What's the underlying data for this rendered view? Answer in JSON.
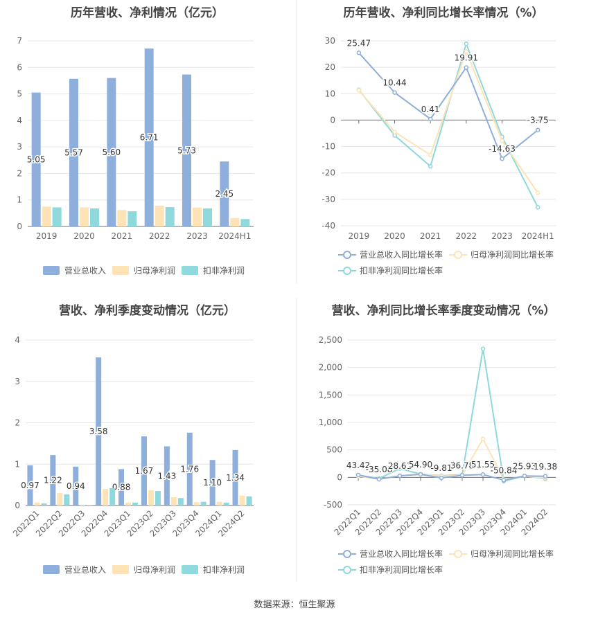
{
  "source_label": "数据来源：恒生聚源",
  "chart_data": [
    {
      "type": "bar",
      "title": "历年营收、净利情况（亿元）",
      "categories": [
        "2019",
        "2020",
        "2021",
        "2022",
        "2023",
        "2024H1"
      ],
      "ylim": [
        0,
        7
      ],
      "yticks": [
        0,
        1,
        2,
        3,
        4,
        5,
        6,
        7
      ],
      "grid": true,
      "legend_position": "bottom",
      "series": [
        {
          "name": "营业总收入",
          "color": "#8eaedc",
          "values": [
            5.05,
            5.57,
            5.6,
            6.71,
            5.73,
            2.45
          ],
          "labels": [
            "5.05",
            "5.57",
            "5.60",
            "6.71",
            "5.73",
            "2.45"
          ]
        },
        {
          "name": "归母净利润",
          "color": "#fde3b5",
          "values": [
            0.75,
            0.72,
            0.62,
            0.78,
            0.71,
            0.32
          ]
        },
        {
          "name": "扣非净利润",
          "color": "#8fd8dc",
          "values": [
            0.72,
            0.68,
            0.57,
            0.73,
            0.68,
            0.28
          ]
        }
      ]
    },
    {
      "type": "line",
      "title": "历年营收、净利同比增长率情况（%）",
      "categories": [
        "2019",
        "2020",
        "2021",
        "2022",
        "2023",
        "2024H1"
      ],
      "ylim": [
        -40,
        30
      ],
      "yticks": [
        -40,
        -30,
        -20,
        -10,
        0,
        10,
        20,
        30
      ],
      "grid": true,
      "legend_position": "bottom",
      "series": [
        {
          "name": "营业总收入同比增长率",
          "color": "#8eaedc",
          "values": [
            25.47,
            10.44,
            0.41,
            19.91,
            -14.63,
            -3.75
          ],
          "labels": [
            "25.47",
            "10.44",
            "0.41",
            "19.91",
            "-14.63",
            "-3.75"
          ]
        },
        {
          "name": "归母净利润同比增长率",
          "color": "#fde3b5",
          "values": [
            11.3,
            -4.5,
            -13.2,
            26.0,
            -7.8,
            -27.5
          ]
        },
        {
          "name": "扣非净利润同比增长率",
          "color": "#8fd8dc",
          "values": [
            11.5,
            -5.8,
            -17.5,
            28.9,
            -6.3,
            -33.0
          ]
        }
      ]
    },
    {
      "type": "bar",
      "title": "营收、净利季度变动情况（亿元）",
      "categories": [
        "2022Q1",
        "2022Q2",
        "2022Q3",
        "2022Q4",
        "2023Q1",
        "2023Q2",
        "2023Q3",
        "2023Q4",
        "2024Q1",
        "2024Q2"
      ],
      "ylim": [
        0,
        4
      ],
      "yticks": [
        0,
        1,
        2,
        3,
        4
      ],
      "grid": true,
      "legend_position": "bottom",
      "series": [
        {
          "name": "营业总收入",
          "color": "#8eaedc",
          "values": [
            0.97,
            1.22,
            0.94,
            3.58,
            0.88,
            1.67,
            1.43,
            1.76,
            1.1,
            1.34
          ],
          "labels": [
            "0.97",
            "1.22",
            "0.94",
            "3.58",
            "0.88",
            "1.67",
            "1.43",
            "1.76",
            "1.10",
            "1.34"
          ]
        },
        {
          "name": "归母净利润",
          "color": "#fde3b5",
          "values": [
            0.07,
            0.3,
            0.02,
            0.4,
            0.07,
            0.37,
            0.2,
            0.08,
            0.09,
            0.24
          ]
        },
        {
          "name": "扣非净利润",
          "color": "#8fd8dc",
          "values": [
            0.05,
            0.27,
            0.01,
            0.42,
            0.07,
            0.35,
            0.18,
            0.09,
            0.07,
            0.22
          ]
        }
      ]
    },
    {
      "type": "line",
      "title": "营收、净利同比增长率季度变动情况（%）",
      "categories": [
        "2022Q1",
        "2022Q2",
        "2022Q3",
        "2022Q4",
        "2023Q1",
        "2023Q2",
        "2023Q3",
        "2023Q4",
        "2024Q1",
        "2024Q2"
      ],
      "ylim": [
        -500,
        2500
      ],
      "yticks": [
        -500,
        0,
        500,
        1000,
        1500,
        2000,
        2500
      ],
      "ytick_labels": [
        "-500",
        "0",
        "500",
        "1,000",
        "1,500",
        "2,000",
        "2,500"
      ],
      "grid": true,
      "legend_position": "bottom",
      "series": [
        {
          "name": "营业总收入同比增长率",
          "color": "#8eaedc",
          "values": [
            43.42,
            -35.08,
            28.61,
            54.9,
            -9.81,
            36.78,
            51.55,
            -50.84,
            25.93,
            19.38
          ],
          "labels": [
            "43.42",
            "-35.08",
            "28.61",
            "54.90",
            "-9.81",
            "36.78",
            "51.55",
            "-50.84",
            "25.93",
            "19.38"
          ]
        },
        {
          "name": "归母净利润同比增长率",
          "color": "#fde3b5",
          "values": [
            20,
            -30,
            30,
            60,
            20,
            40,
            700,
            -40,
            20,
            -10
          ]
        },
        {
          "name": "扣非净利润同比增长率",
          "color": "#8fd8dc",
          "values": [
            40,
            -20,
            160,
            60,
            30,
            50,
            2340,
            -70,
            25,
            -25
          ]
        }
      ]
    }
  ]
}
